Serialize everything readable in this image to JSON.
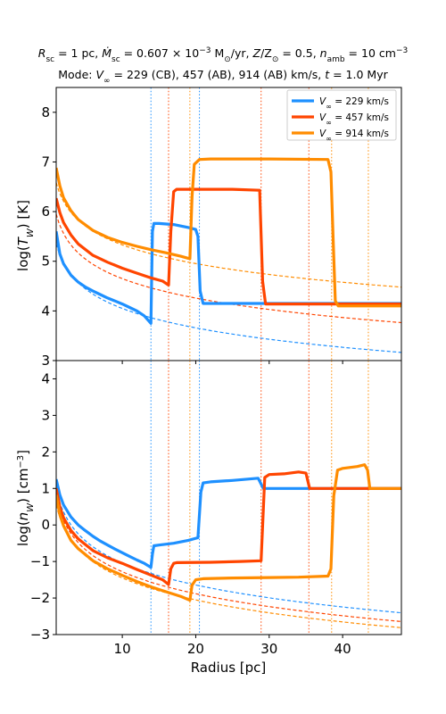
{
  "chart_data": {
    "type": "line",
    "title_line1": "R_sc = 1 pc, Ṁ_sc = 0.607 × 10^-3 M⊙/yr, Z/Z⊙ = 0.5, n_amb = 10 cm^-3",
    "title_line2": "Mode: V∞ = 229 (CB), 457 (AB), 914 (AB) km/s, t = 1.0 Myr",
    "xlabel": "Radius [pc]",
    "xlim": [
      1,
      48
    ],
    "x_ticks": [
      10,
      20,
      30,
      40
    ],
    "legend_position": "upper right",
    "series": [
      {
        "name": "V∞ = 229 km/s",
        "color": "#1e90ff",
        "dashed_power_law_top": {
          "r1": 1,
          "v1": 5.35,
          "slope": -1.3
        },
        "dashed_power_law_bottom": {
          "r1": 1,
          "v1": 0.96,
          "slope": -2.0
        },
        "vlines": [
          13.9,
          20.5
        ],
        "temperature": [
          [
            1,
            5.6
          ],
          [
            1.5,
            5.15
          ],
          [
            2,
            4.95
          ],
          [
            3,
            4.72
          ],
          [
            4,
            4.58
          ],
          [
            5,
            4.48
          ],
          [
            6,
            4.4
          ],
          [
            7,
            4.33
          ],
          [
            8,
            4.26
          ],
          [
            9,
            4.2
          ],
          [
            10,
            4.14
          ],
          [
            11,
            4.07
          ],
          [
            12,
            4.0
          ],
          [
            13,
            3.9
          ],
          [
            13.9,
            3.75
          ],
          [
            14.1,
            5.6
          ],
          [
            14.3,
            5.76
          ],
          [
            15,
            5.76
          ],
          [
            17,
            5.74
          ],
          [
            19,
            5.68
          ],
          [
            20,
            5.64
          ],
          [
            20.3,
            5.5
          ],
          [
            20.6,
            4.4
          ],
          [
            21,
            4.15
          ],
          [
            48,
            4.15
          ]
        ],
        "density": [
          [
            1,
            1.25
          ],
          [
            1.5,
            0.82
          ],
          [
            2,
            0.55
          ],
          [
            3,
            0.22
          ],
          [
            4,
            0.0
          ],
          [
            5,
            -0.16
          ],
          [
            6,
            -0.31
          ],
          [
            7,
            -0.44
          ],
          [
            8,
            -0.55
          ],
          [
            9,
            -0.66
          ],
          [
            10,
            -0.76
          ],
          [
            11,
            -0.86
          ],
          [
            12,
            -0.96
          ],
          [
            13,
            -1.05
          ],
          [
            13.9,
            -1.16
          ],
          [
            14.1,
            -0.8
          ],
          [
            14.3,
            -0.57
          ],
          [
            15,
            -0.55
          ],
          [
            17,
            -0.5
          ],
          [
            19,
            -0.42
          ],
          [
            20.3,
            -0.35
          ],
          [
            20.7,
            0.9
          ],
          [
            21,
            1.15
          ],
          [
            22,
            1.18
          ],
          [
            25,
            1.22
          ],
          [
            28.5,
            1.28
          ],
          [
            29.2,
            1.0
          ],
          [
            48,
            1.0
          ]
        ]
      },
      {
        "name": "V∞ = 457 km/s",
        "color": "#ff4500",
        "dashed_power_law_top": {
          "r1": 1,
          "v1": 5.95,
          "slope": -1.3
        },
        "dashed_power_law_bottom": {
          "r1": 1,
          "v1": 0.72,
          "slope": -2.0
        },
        "vlines": [
          16.3,
          28.9,
          35.4
        ],
        "temperature": [
          [
            1,
            6.27
          ],
          [
            1.5,
            5.98
          ],
          [
            2,
            5.78
          ],
          [
            3,
            5.53
          ],
          [
            4,
            5.35
          ],
          [
            6,
            5.12
          ],
          [
            8,
            4.98
          ],
          [
            10,
            4.86
          ],
          [
            12,
            4.76
          ],
          [
            14,
            4.66
          ],
          [
            15.5,
            4.6
          ],
          [
            16.3,
            4.52
          ],
          [
            16.6,
            5.6
          ],
          [
            17,
            6.4
          ],
          [
            17.4,
            6.45
          ],
          [
            25,
            6.45
          ],
          [
            28.7,
            6.43
          ],
          [
            29.1,
            4.6
          ],
          [
            29.5,
            4.14
          ],
          [
            48,
            4.14
          ]
        ],
        "density": [
          [
            1,
            1.0
          ],
          [
            1.5,
            0.5
          ],
          [
            2,
            0.2
          ],
          [
            3,
            -0.15
          ],
          [
            4,
            -0.38
          ],
          [
            6,
            -0.7
          ],
          [
            8,
            -0.9
          ],
          [
            10,
            -1.05
          ],
          [
            12,
            -1.22
          ],
          [
            14,
            -1.38
          ],
          [
            15.5,
            -1.5
          ],
          [
            16.3,
            -1.63
          ],
          [
            16.6,
            -1.2
          ],
          [
            17,
            -1.05
          ],
          [
            17.4,
            -1.03
          ],
          [
            22,
            -1.02
          ],
          [
            26,
            -1.0
          ],
          [
            28.9,
            -0.98
          ],
          [
            29.4,
            1.3
          ],
          [
            30,
            1.38
          ],
          [
            32,
            1.4
          ],
          [
            34,
            1.45
          ],
          [
            35,
            1.42
          ],
          [
            35.5,
            1.0
          ],
          [
            48,
            1.0
          ]
        ]
      },
      {
        "name": "V∞ = 914 km/s",
        "color": "#ff8c00",
        "dashed_power_law_top": {
          "r1": 1,
          "v1": 6.58,
          "slope": -1.25
        },
        "dashed_power_law_bottom": {
          "r1": 1,
          "v1": 0.55,
          "slope": -2.0
        },
        "vlines": [
          19.2,
          38.5,
          43.5
        ],
        "temperature": [
          [
            1,
            6.88
          ],
          [
            1.5,
            6.52
          ],
          [
            2,
            6.28
          ],
          [
            3,
            6.02
          ],
          [
            4,
            5.84
          ],
          [
            6,
            5.62
          ],
          [
            8,
            5.48
          ],
          [
            10,
            5.38
          ],
          [
            12,
            5.3
          ],
          [
            14,
            5.23
          ],
          [
            16,
            5.17
          ],
          [
            18,
            5.1
          ],
          [
            19.2,
            5.05
          ],
          [
            19.5,
            6.3
          ],
          [
            19.8,
            6.95
          ],
          [
            20.5,
            7.05
          ],
          [
            22,
            7.06
          ],
          [
            25,
            7.06
          ],
          [
            30,
            7.06
          ],
          [
            38,
            7.05
          ],
          [
            38.4,
            6.8
          ],
          [
            38.7,
            5.5
          ],
          [
            39.0,
            4.2
          ],
          [
            39.4,
            4.1
          ],
          [
            48,
            4.1
          ]
        ],
        "density": [
          [
            1,
            0.82
          ],
          [
            1.5,
            0.28
          ],
          [
            2,
            -0.02
          ],
          [
            3,
            -0.42
          ],
          [
            4,
            -0.65
          ],
          [
            6,
            -0.98
          ],
          [
            8,
            -1.2
          ],
          [
            10,
            -1.38
          ],
          [
            12,
            -1.55
          ],
          [
            14,
            -1.7
          ],
          [
            16,
            -1.83
          ],
          [
            18,
            -1.96
          ],
          [
            19.2,
            -2.06
          ],
          [
            19.5,
            -1.65
          ],
          [
            20,
            -1.5
          ],
          [
            21,
            -1.47
          ],
          [
            25,
            -1.45
          ],
          [
            30,
            -1.44
          ],
          [
            34,
            -1.43
          ],
          [
            38,
            -1.4
          ],
          [
            38.4,
            -1.2
          ],
          [
            38.8,
            0.8
          ],
          [
            39.3,
            1.5
          ],
          [
            40,
            1.55
          ],
          [
            42,
            1.6
          ],
          [
            43,
            1.65
          ],
          [
            43.4,
            1.5
          ],
          [
            43.7,
            1.0
          ],
          [
            48,
            1.0
          ]
        ]
      }
    ],
    "panels": [
      {
        "ylabel": "log(T_w) [K]",
        "ylim": [
          3,
          8.5
        ],
        "y_ticks": [
          3,
          4,
          5,
          6,
          7,
          8
        ],
        "key": "temperature"
      },
      {
        "ylabel": "log(n_w) [cm^-3]",
        "ylim": [
          -3,
          4.5
        ],
        "y_ticks": [
          -3,
          -2,
          -1,
          0,
          1,
          2,
          3,
          4
        ],
        "key": "density"
      }
    ]
  }
}
